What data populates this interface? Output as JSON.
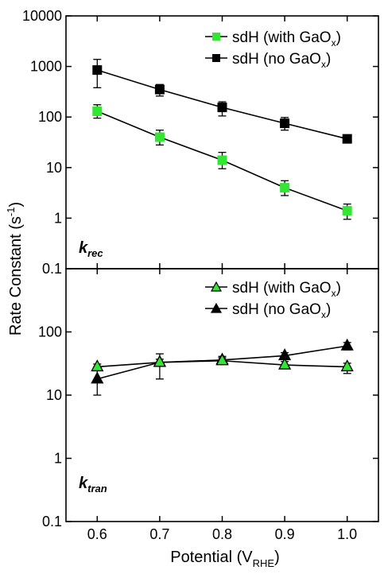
{
  "chart_data": [
    {
      "type": "scatter",
      "panel": "top",
      "annotation": {
        "main": "k",
        "sub": "rec"
      },
      "yscale": "log",
      "ylim": [
        0.1,
        10000
      ],
      "yticks": [
        "0.1",
        "1",
        "10",
        "100",
        "1000",
        "10000"
      ],
      "xlim": [
        0.55,
        1.05
      ],
      "series": [
        {
          "name_main": "sdH (with GaO",
          "name_sub": "x",
          "name_end": ")",
          "marker": "square",
          "color": "#33e633",
          "x": [
            0.6,
            0.7,
            0.8,
            0.9,
            1.0
          ],
          "y": [
            130,
            40,
            14,
            4,
            1.4
          ],
          "err_low": [
            95,
            28,
            9.5,
            2.8,
            0.95
          ],
          "err_high": [
            175,
            55,
            20,
            5.5,
            1.9
          ]
        },
        {
          "name_main": "sdH (no GaO",
          "name_sub": "x",
          "name_end": ")",
          "marker": "square",
          "color": "#000000",
          "x": [
            0.6,
            0.7,
            0.8,
            0.9,
            1.0
          ],
          "y": [
            850,
            350,
            155,
            75,
            37
          ],
          "err_low": [
            380,
            260,
            105,
            55,
            31
          ],
          "err_high": [
            1380,
            440,
            200,
            98,
            44
          ]
        }
      ]
    },
    {
      "type": "scatter",
      "panel": "bottom",
      "annotation": {
        "main": "k",
        "sub": "tran"
      },
      "yscale": "log",
      "ylim": [
        0.1,
        1000
      ],
      "yticks": [
        "0.1",
        "1",
        "10",
        "100"
      ],
      "xlim": [
        0.55,
        1.05
      ],
      "series": [
        {
          "name_main": "sdH (with GaO",
          "name_sub": "x",
          "name_end": ")",
          "marker": "triangle",
          "color": "#33e633",
          "x": [
            0.6,
            0.7,
            0.8,
            0.9,
            1.0
          ],
          "y": [
            28,
            33,
            35,
            30,
            28
          ],
          "err_low": [
            25,
            30,
            32,
            27,
            22
          ],
          "err_high": [
            31,
            37,
            39,
            34,
            32
          ]
        },
        {
          "name_main": "sdH (no GaO",
          "name_sub": "x",
          "name_end": ")",
          "marker": "triangle",
          "color": "#000000",
          "x": [
            0.6,
            0.7,
            0.8,
            0.9,
            1.0
          ],
          "y": [
            18,
            33,
            36,
            42,
            60
          ],
          "err_low": [
            10,
            18,
            31,
            38,
            52
          ],
          "err_high": [
            28,
            45,
            41,
            47,
            68
          ]
        }
      ]
    }
  ],
  "shared": {
    "xticks": [
      "0.6",
      "0.7",
      "0.8",
      "0.9",
      "1.0"
    ],
    "ylabel_main": "Rate Constant (s",
    "ylabel_sup": "-1",
    "ylabel_end": ")",
    "xlabel_main": "Potential (V",
    "xlabel_sub": "RHE",
    "xlabel_end": ")"
  }
}
